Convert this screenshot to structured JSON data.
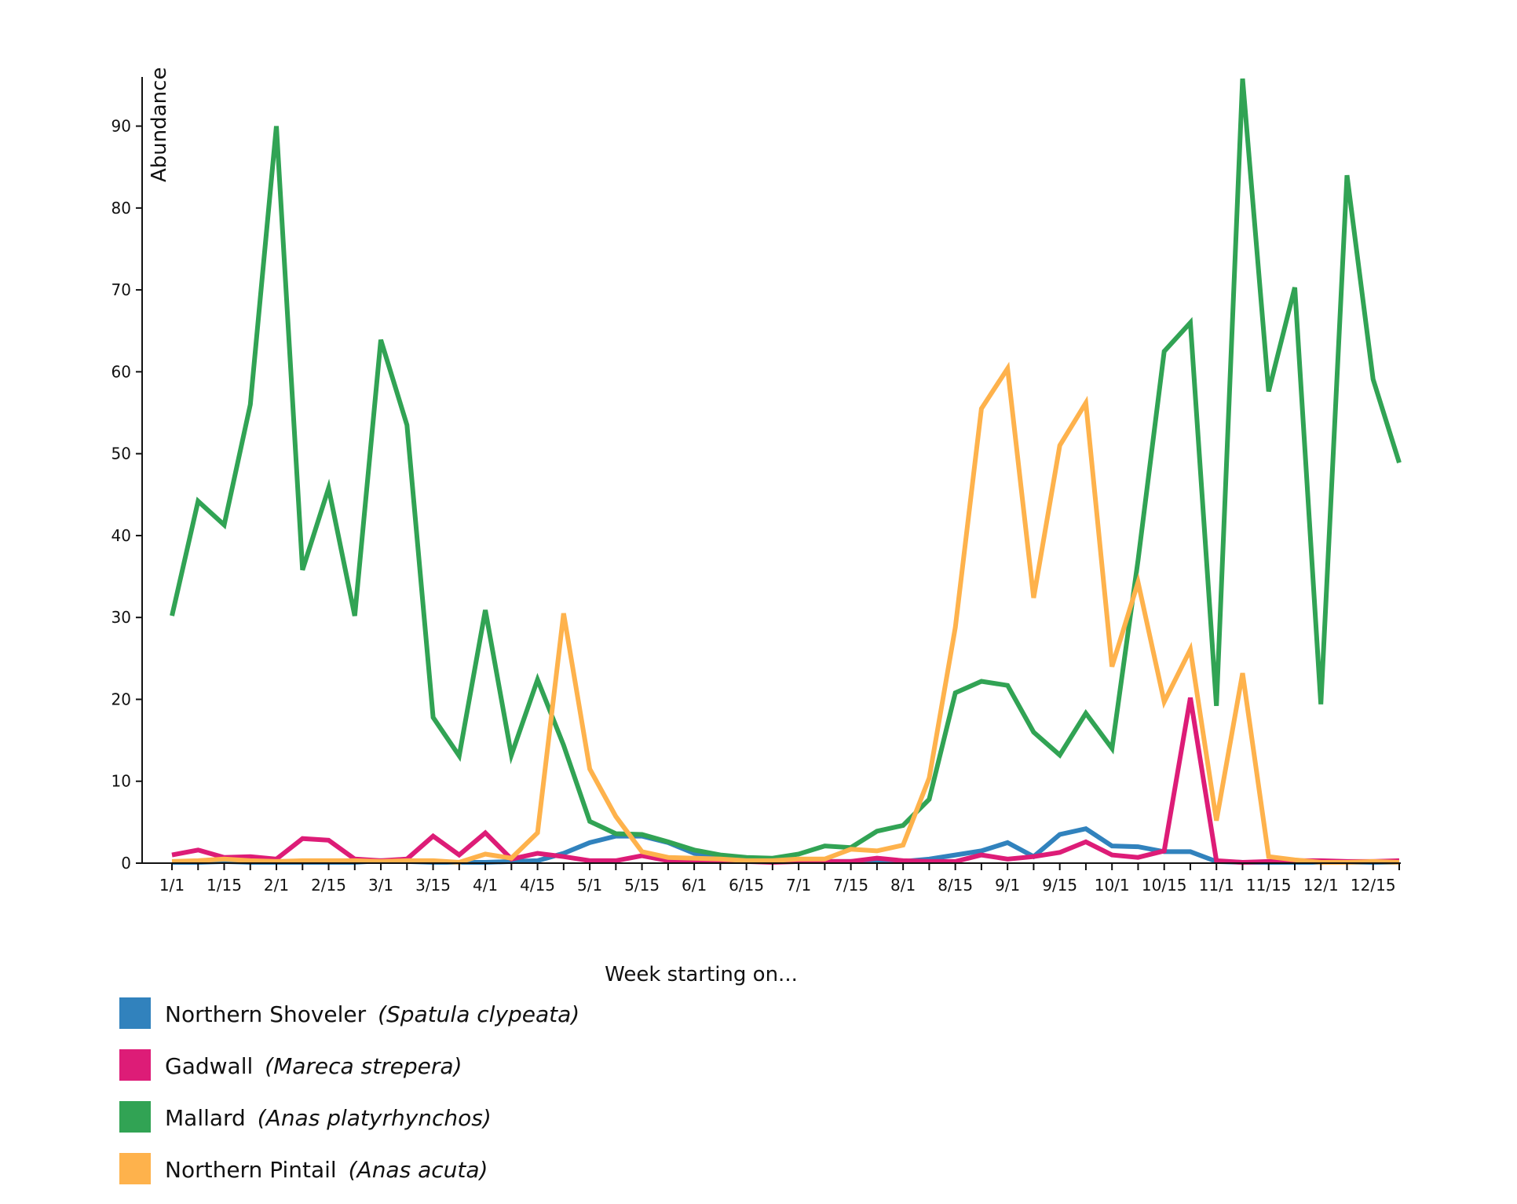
{
  "chart_data": {
    "type": "line",
    "title": "",
    "xlabel": "Week starting on...",
    "ylabel": "Abundance",
    "ylim": [
      0,
      96
    ],
    "yticks": [
      0,
      10,
      20,
      30,
      40,
      50,
      60,
      70,
      80,
      90
    ],
    "xtick_labels": [
      "1/1",
      "1/15",
      "2/1",
      "2/15",
      "3/1",
      "3/15",
      "4/1",
      "4/15",
      "5/1",
      "5/15",
      "6/1",
      "6/15",
      "7/1",
      "7/15",
      "8/1",
      "8/15",
      "9/1",
      "9/15",
      "10/1",
      "10/15",
      "11/1",
      "11/15",
      "12/1",
      "12/15"
    ],
    "x": [
      "1/1",
      "1/8",
      "1/15",
      "1/22",
      "2/1",
      "2/8",
      "2/15",
      "2/22",
      "3/1",
      "3/8",
      "3/15",
      "3/22",
      "4/1",
      "4/8",
      "4/15",
      "4/22",
      "5/1",
      "5/8",
      "5/15",
      "5/22",
      "6/1",
      "6/8",
      "6/15",
      "6/22",
      "7/1",
      "7/8",
      "7/15",
      "7/22",
      "8/1",
      "8/8",
      "8/15",
      "8/22",
      "9/1",
      "9/8",
      "9/15",
      "9/22",
      "10/1",
      "10/8",
      "10/15",
      "10/22",
      "11/1",
      "11/8",
      "11/15",
      "11/22",
      "12/1",
      "12/8",
      "12/15",
      "12/22"
    ],
    "grid": false,
    "legend_position": "bottom-left",
    "series": [
      {
        "name": "Northern Shoveler",
        "scientific": "(Spatula clypeata)",
        "color": "#3182bd",
        "values": [
          0.1,
          0.1,
          0.2,
          0.1,
          0.1,
          0.1,
          0.1,
          0.1,
          0.3,
          0.2,
          0.1,
          0.1,
          0.1,
          0.2,
          0.3,
          1.2,
          2.5,
          3.3,
          3.3,
          2.5,
          1.2,
          0.6,
          0.3,
          0.3,
          0.3,
          0.2,
          0.2,
          0.2,
          0.2,
          0.5,
          1.0,
          1.5,
          2.5,
          0.8,
          3.5,
          4.2,
          2.1,
          2.0,
          1.4,
          1.4,
          0.2,
          0.1,
          0.1,
          0.1,
          0.1,
          0.1,
          0.1,
          0.1
        ]
      },
      {
        "name": "Gadwall",
        "scientific": "(Mareca strepera)",
        "color": "#dd1c77",
        "values": [
          1.0,
          1.6,
          0.7,
          0.8,
          0.5,
          3.0,
          2.8,
          0.5,
          0.3,
          0.5,
          3.3,
          1.0,
          3.7,
          0.5,
          1.2,
          0.8,
          0.3,
          0.3,
          0.9,
          0.3,
          0.3,
          0.3,
          0.2,
          0.1,
          0.2,
          0.2,
          0.2,
          0.6,
          0.3,
          0.2,
          0.2,
          1.0,
          0.5,
          0.8,
          1.3,
          2.6,
          1.0,
          0.7,
          1.5,
          20.2,
          0.3,
          0.1,
          0.2,
          0.3,
          0.3,
          0.2,
          0.2,
          0.3
        ]
      },
      {
        "name": "Mallard",
        "scientific": "(Anas platyrhynchos)",
        "color": "#31a354",
        "values": [
          30.2,
          44.2,
          41.3,
          56.0,
          90.0,
          35.8,
          45.8,
          30.2,
          63.9,
          53.5,
          17.8,
          13.1,
          30.9,
          13.2,
          22.4,
          14.4,
          5.1,
          3.6,
          3.5,
          2.6,
          1.6,
          1.0,
          0.7,
          0.6,
          1.1,
          2.1,
          1.9,
          3.9,
          4.6,
          7.8,
          20.8,
          22.2,
          21.7,
          16.0,
          13.2,
          18.3,
          14.0,
          37.0,
          62.5,
          66.0,
          19.2,
          95.8,
          57.6,
          70.3,
          19.4,
          84.0,
          59.1,
          48.9
        ]
      },
      {
        "name": "Northern Pintail",
        "scientific": "(Anas acuta)",
        "color": "#feb24c",
        "values": [
          0.2,
          0.3,
          0.5,
          0.3,
          0.2,
          0.3,
          0.3,
          0.3,
          0.2,
          0.3,
          0.3,
          0.1,
          1.1,
          0.6,
          3.7,
          30.5,
          11.5,
          5.7,
          1.4,
          0.7,
          0.6,
          0.5,
          0.3,
          0.3,
          0.5,
          0.5,
          1.7,
          1.5,
          2.2,
          10.4,
          28.8,
          55.5,
          60.4,
          32.4,
          51.0,
          56.2,
          24.0,
          34.3,
          19.7,
          26.1,
          5.2,
          23.2,
          0.8,
          0.4,
          0.1,
          0.1,
          0.2,
          0.1
        ]
      }
    ]
  }
}
